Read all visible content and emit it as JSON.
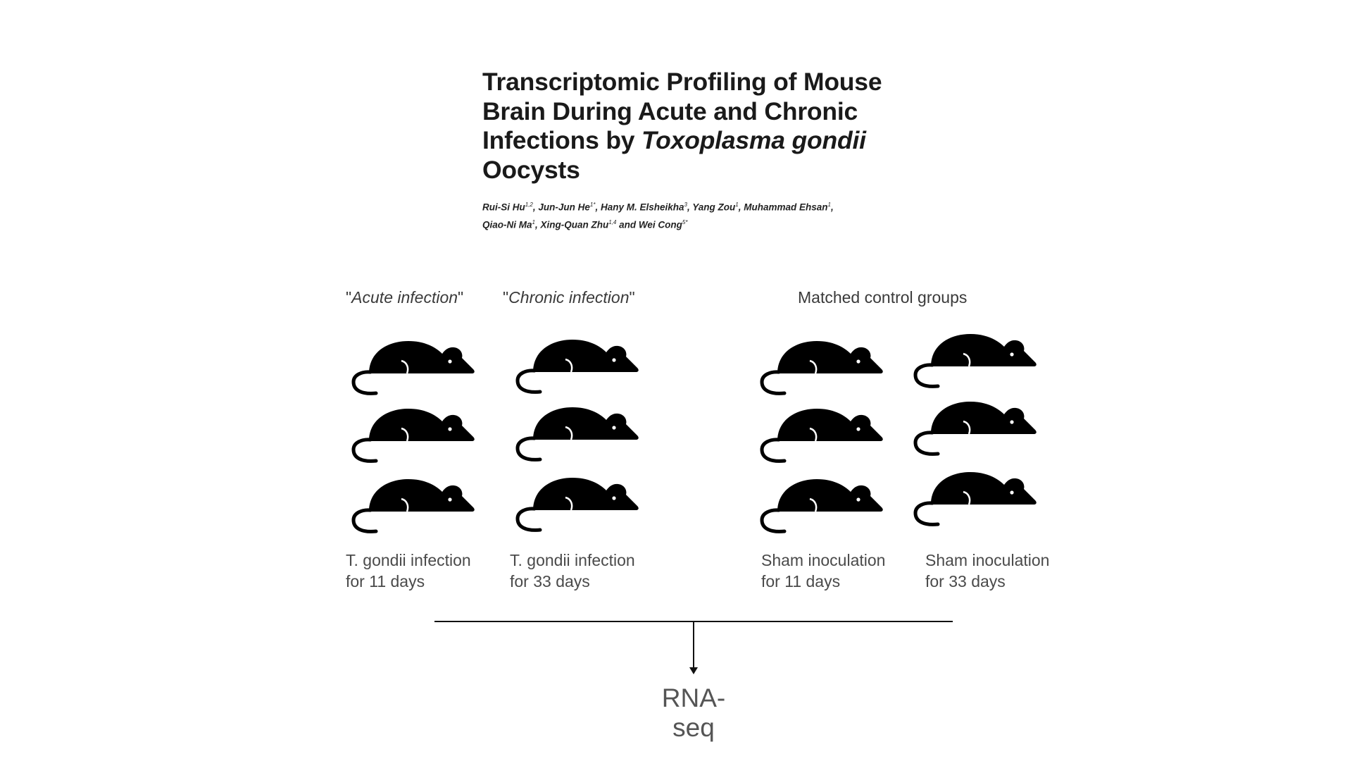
{
  "paper": {
    "title_part1": "Transcriptomic Profiling of Mouse Brain During Acute and Chronic Infections by ",
    "title_italic": "Toxoplasma gondii",
    "title_part2": " Oocysts",
    "authors": [
      {
        "name": "Rui-Si Hu",
        "sup": "1,2",
        "sep": ", "
      },
      {
        "name": "Jun-Jun He",
        "sup": "1*",
        "sep": ", "
      },
      {
        "name": "Hany M. Elsheikha",
        "sup": "3",
        "sep": ", "
      },
      {
        "name": "Yang Zou",
        "sup": "1",
        "sep": ", "
      },
      {
        "name": "Muhammad Ehsan",
        "sup": "1",
        "sep": ", "
      },
      {
        "name": "Qiao-Ni Ma",
        "sup": "1",
        "sep": ", "
      },
      {
        "name": "Xing-Quan Zhu",
        "sup": "1,4",
        "sep": " and "
      },
      {
        "name": "Wei Cong",
        "sup": "5*",
        "sep": ""
      }
    ]
  },
  "labels": {
    "acute": "Acute infection",
    "chronic": "Chronic infection",
    "control": "Matched control groups"
  },
  "captions": {
    "acute_line1": "T. gondii infection",
    "acute_line2": "for 11 days",
    "chronic_line1": "T. gondii infection",
    "chronic_line2": "for 33 days",
    "sham11_line1": "Sham inoculation",
    "sham11_line2": "for 11 days",
    "sham33_line1": "Sham inoculation",
    "sham33_line2": "for 33 days"
  },
  "output_label": "RNA-seq",
  "mouse_icon": "mouse-icon",
  "mouse_color": "#000000"
}
